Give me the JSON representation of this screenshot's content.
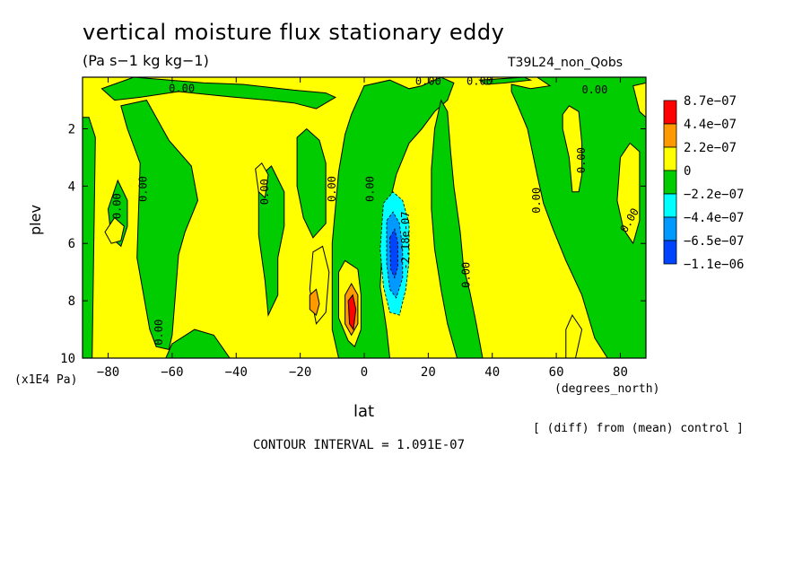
{
  "chart_data": {
    "type": "heatmap",
    "title": "vertical moisture flux stationary eddy",
    "units_label": "(Pa s−1 kg kg−1)",
    "run_label": "T39L24_non_Qobs",
    "xlabel": "lat",
    "x_unit_label": "(degrees_north)",
    "ylabel": "plev",
    "y_unit_label": "(x1E4 Pa)",
    "note": "[ (diff) from (mean) control ]",
    "contour_interval_label": "CONTOUR INTERVAL = 1.091E-07",
    "xlim": [
      -88,
      88
    ],
    "ylim": [
      10,
      0.2
    ],
    "x_ticks": [
      -80,
      -60,
      -40,
      -20,
      0,
      20,
      40,
      60,
      80
    ],
    "x_tick_labels": [
      "−80",
      "−60",
      "−40",
      "−20",
      "0",
      "20",
      "40",
      "60",
      "80"
    ],
    "y_ticks": [
      2,
      4,
      6,
      8,
      10
    ],
    "y_tick_labels": [
      "2",
      "4",
      "6",
      "8",
      "10"
    ],
    "legend": {
      "placement": "right",
      "colors": [
        "#ff0000",
        "#ff9900",
        "#ffff00",
        "#00cc00",
        "#00ffff",
        "#0099ff",
        "#0044ff"
      ],
      "labels": [
        "8.7e−07",
        "4.4e−07",
        "2.2e−07",
        "0",
        "−2.2e−07",
        "−4.4e−07",
        "−6.5e−07",
        "−1.1e−06"
      ]
    },
    "contour_labels": [
      {
        "text": "0.00",
        "lat": -57,
        "plev": 0.6,
        "rot": 0
      },
      {
        "text": "0.00",
        "lat": 20,
        "plev": 0.35,
        "rot": 0
      },
      {
        "text": "0.00",
        "lat": 36,
        "plev": 0.35,
        "rot": 0
      },
      {
        "text": "0.00",
        "lat": 72,
        "plev": 0.65,
        "rot": 0
      },
      {
        "text": "0.00",
        "lat": -77,
        "plev": 4.7,
        "rot": -90
      },
      {
        "text": "0.00",
        "lat": -69,
        "plev": 4.1,
        "rot": -90
      },
      {
        "text": "0.00",
        "lat": -31,
        "plev": 4.2,
        "rot": -90
      },
      {
        "text": "0.00",
        "lat": -10,
        "plev": 4.1,
        "rot": -90
      },
      {
        "text": "0.00",
        "lat": 2,
        "plev": 4.1,
        "rot": -90
      },
      {
        "text": "-2.18e-07",
        "lat": 13,
        "plev": 5.9,
        "rot": -90
      },
      {
        "text": "0.00",
        "lat": 32,
        "plev": 7.1,
        "rot": -90
      },
      {
        "text": "0.00",
        "lat": 54,
        "plev": 4.5,
        "rot": -90
      },
      {
        "text": "0.00",
        "lat": 68,
        "plev": 3.1,
        "rot": -90
      },
      {
        "text": "0.00",
        "lat": 83,
        "plev": 5.2,
        "rot": -60
      },
      {
        "text": "0.00",
        "lat": -64,
        "plev": 9.1,
        "rot": -90
      }
    ],
    "regions": [
      {
        "level": "negative_1",
        "color": "#00cc00",
        "shapes": [
          [
            [
              -88,
              1.6
            ],
            [
              -86,
              1.6
            ],
            [
              -84,
              2.3
            ],
            [
              -85,
              10
            ],
            [
              -88,
              10
            ]
          ],
          [
            [
              -80,
              4.8
            ],
            [
              -77,
              3.8
            ],
            [
              -74,
              4.5
            ],
            [
              -74,
              5.4
            ],
            [
              -76,
              6.1
            ],
            [
              -79,
              5.8
            ]
          ],
          [
            [
              -76,
              1.2
            ],
            [
              -68,
              1.0
            ],
            [
              -61,
              2.4
            ],
            [
              -54,
              3.3
            ],
            [
              -52,
              4.5
            ],
            [
              -56,
              5.6
            ],
            [
              -58,
              6.4
            ],
            [
              -60,
              9.2
            ],
            [
              -61,
              9.7
            ],
            [
              -65,
              9.6
            ],
            [
              -67,
              9.0
            ],
            [
              -71,
              6.5
            ],
            [
              -70,
              3.2
            ],
            [
              -74,
              2.0
            ]
          ],
          [
            [
              -72,
              0.2
            ],
            [
              -50,
              0.4
            ],
            [
              -38,
              0.45
            ],
            [
              -22,
              0.65
            ],
            [
              -12,
              0.75
            ],
            [
              -9,
              0.9
            ],
            [
              -15,
              1.3
            ],
            [
              -22,
              1.1
            ],
            [
              -30,
              1.0
            ],
            [
              -45,
              0.85
            ],
            [
              -58,
              0.7
            ],
            [
              -70,
              0.9
            ],
            [
              -78,
              1.0
            ],
            [
              -82,
              0.6
            ]
          ],
          [
            [
              -60,
              9.5
            ],
            [
              -53,
              9.0
            ],
            [
              -47,
              9.2
            ],
            [
              -42,
              10
            ],
            [
              -62,
              10
            ]
          ],
          [
            [
              -33,
              3.7
            ],
            [
              -29,
              3.3
            ],
            [
              -25,
              4.2
            ],
            [
              -25,
              5.4
            ],
            [
              -27,
              6.5
            ],
            [
              -27,
              7.8
            ],
            [
              -30,
              8.5
            ],
            [
              -31,
              7.3
            ],
            [
              -33,
              5.7
            ]
          ],
          [
            [
              -21,
              2.3
            ],
            [
              -18,
              2.0
            ],
            [
              -14,
              2.4
            ],
            [
              -12,
              3.2
            ],
            [
              -12,
              5.3
            ],
            [
              -16,
              5.8
            ],
            [
              -19,
              5.1
            ],
            [
              -21,
              4.0
            ]
          ],
          [
            [
              -4,
              1.5
            ],
            [
              0,
              0.5
            ],
            [
              8,
              0.3
            ],
            [
              14,
              0.6
            ],
            [
              18,
              0.5
            ],
            [
              24,
              0.2
            ],
            [
              28,
              0.4
            ],
            [
              26,
              1.0
            ],
            [
              22,
              1.4
            ],
            [
              18,
              2.0
            ],
            [
              14,
              2.5
            ],
            [
              10,
              3.6
            ],
            [
              6,
              5.5
            ],
            [
              5,
              7.5
            ],
            [
              7,
              9.0
            ],
            [
              8,
              10
            ],
            [
              -8,
              10
            ],
            [
              -10,
              9.0
            ],
            [
              -10,
              6.0
            ],
            [
              -8,
              3.5
            ],
            [
              -6,
              2.2
            ]
          ],
          [
            [
              36,
              0.3
            ],
            [
              50,
              0.2
            ],
            [
              52,
              0.3
            ],
            [
              44,
              0.4
            ],
            [
              38,
              0.45
            ]
          ],
          [
            [
              54,
              0.2
            ],
            [
              88,
              0.2
            ],
            [
              88,
              10
            ],
            [
              76,
              10
            ],
            [
              72,
              9.3
            ],
            [
              68,
              7.8
            ],
            [
              63,
              6.6
            ],
            [
              59,
              5.5
            ],
            [
              56,
              4.6
            ],
            [
              54,
              3.6
            ],
            [
              51,
              2.0
            ],
            [
              48,
              1.2
            ],
            [
              46,
              0.7
            ],
            [
              46,
              0.45
            ],
            [
              52,
              0.6
            ],
            [
              58,
              0.5
            ]
          ],
          [
            [
              24,
              1.0
            ],
            [
              26,
              1.4
            ],
            [
              27,
              2.8
            ],
            [
              28,
              4.0
            ],
            [
              30,
              5.6
            ],
            [
              31,
              6.8
            ],
            [
              33,
              7.7
            ],
            [
              35,
              8.8
            ],
            [
              37,
              10
            ],
            [
              29,
              10
            ],
            [
              26,
              8.8
            ],
            [
              24,
              7.6
            ],
            [
              22,
              6.2
            ],
            [
              21,
              4.8
            ],
            [
              21,
              3.4
            ],
            [
              22,
              2.0
            ]
          ]
        ]
      },
      {
        "level": "positive_1",
        "color": "#ffff00",
        "shapes": [
          [
            [
              -81,
              5.6
            ],
            [
              -78,
              5.1
            ],
            [
              -75,
              5.4
            ],
            [
              -76,
              5.9
            ],
            [
              -79,
              6.0
            ]
          ],
          [
            [
              -34,
              3.4
            ],
            [
              -32,
              3.2
            ],
            [
              -30,
              3.6
            ],
            [
              -31,
              4.4
            ],
            [
              -33,
              4.2
            ]
          ],
          [
            [
              62,
              1.5
            ],
            [
              64,
              1.2
            ],
            [
              67,
              1.4
            ],
            [
              68,
              2.5
            ],
            [
              68,
              3.6
            ],
            [
              67,
              4.2
            ],
            [
              65,
              4.2
            ],
            [
              64,
              3.0
            ],
            [
              62,
              2.0
            ]
          ],
          [
            [
              63,
              9.0
            ],
            [
              65,
              8.5
            ],
            [
              68,
              9.0
            ],
            [
              66,
              10
            ],
            [
              63,
              10
            ]
          ],
          [
            [
              80,
              3.0
            ],
            [
              83,
              2.5
            ],
            [
              86,
              2.8
            ],
            [
              86,
              5.2
            ],
            [
              84,
              6.0
            ],
            [
              81,
              5.5
            ],
            [
              79,
              4.5
            ]
          ],
          [
            [
              84,
              0.5
            ],
            [
              88,
              0.4
            ],
            [
              88,
              1.6
            ],
            [
              86,
              1.4
            ]
          ],
          [
            [
              -16,
              6.3
            ],
            [
              -13,
              6.1
            ],
            [
              -11,
              7.0
            ],
            [
              -12,
              8.4
            ],
            [
              -15,
              8.8
            ],
            [
              -17,
              7.6
            ]
          ],
          [
            [
              -8,
              7.0
            ],
            [
              -6,
              6.6
            ],
            [
              -2,
              6.9
            ],
            [
              -1,
              7.8
            ],
            [
              -1,
              9.0
            ],
            [
              -3,
              9.6
            ],
            [
              -5,
              9.4
            ],
            [
              -8,
              8.6
            ]
          ]
        ]
      },
      {
        "level": "positive_2",
        "color": "#ff9900",
        "shapes": [
          [
            [
              -6,
              7.8
            ],
            [
              -4,
              7.4
            ],
            [
              -2,
              7.8
            ],
            [
              -2,
              8.8
            ],
            [
              -4,
              9.2
            ],
            [
              -6,
              8.8
            ]
          ],
          [
            [
              -17,
              7.8
            ],
            [
              -15,
              7.6
            ],
            [
              -14,
              8.1
            ],
            [
              -15,
              8.5
            ],
            [
              -17,
              8.3
            ]
          ]
        ]
      },
      {
        "level": "positive_3",
        "color": "#ff0000",
        "shapes": [
          [
            [
              -5,
              8.0
            ],
            [
              -3.6,
              7.8
            ],
            [
              -2.6,
              8.3
            ],
            [
              -3.4,
              9.0
            ],
            [
              -4.6,
              8.8
            ]
          ]
        ]
      },
      {
        "level": "negative_2",
        "color": "#00ffff",
        "shapes": [
          [
            [
              6,
              4.6
            ],
            [
              9,
              4.2
            ],
            [
              12,
              4.5
            ],
            [
              14,
              5.3
            ],
            [
              14,
              6.6
            ],
            [
              13,
              7.6
            ],
            [
              11,
              8.5
            ],
            [
              8,
              8.4
            ],
            [
              6,
              7.5
            ],
            [
              5,
              6.2
            ]
          ]
        ]
      },
      {
        "level": "negative_3",
        "color": "#0099ff",
        "shapes": [
          [
            [
              7,
              5.2
            ],
            [
              9,
              4.9
            ],
            [
              11,
              5.3
            ],
            [
              12,
              6.2
            ],
            [
              12,
              7.2
            ],
            [
              10,
              7.9
            ],
            [
              8,
              7.6
            ],
            [
              7,
              6.7
            ]
          ]
        ]
      },
      {
        "level": "negative_4",
        "color": "#0044ff",
        "shapes": [
          [
            [
              8,
              5.8
            ],
            [
              9.5,
              5.5
            ],
            [
              10.5,
              6.0
            ],
            [
              10.5,
              6.8
            ],
            [
              9.5,
              7.2
            ],
            [
              8.3,
              6.9
            ]
          ]
        ]
      }
    ]
  }
}
